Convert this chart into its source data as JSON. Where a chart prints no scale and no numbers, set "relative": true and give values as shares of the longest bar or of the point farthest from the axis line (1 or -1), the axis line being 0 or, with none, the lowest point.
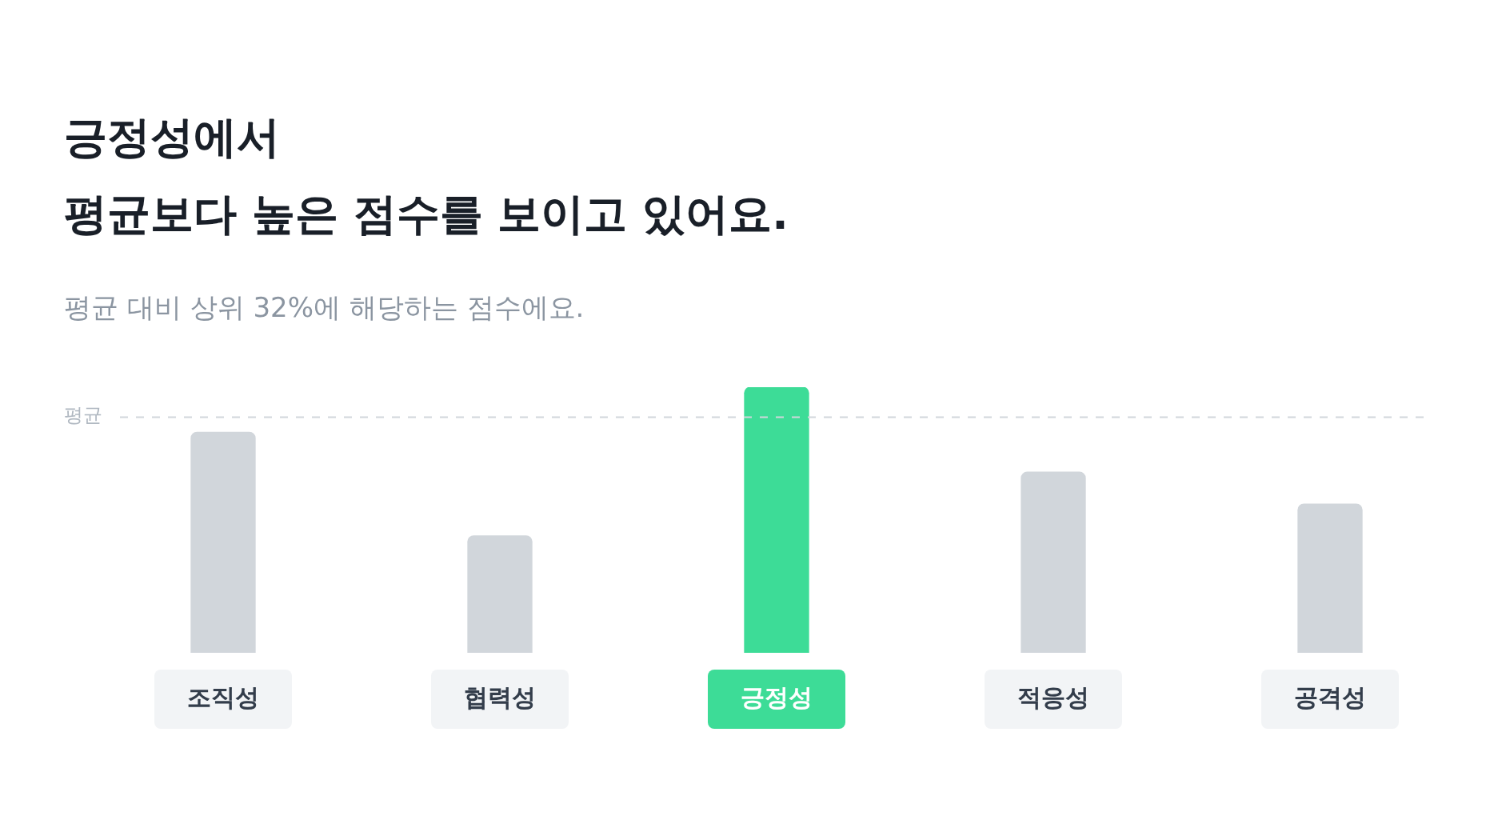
{
  "chart_data": {
    "type": "bar",
    "title": "긍정성에서\n평균보다 높은 점수를 보이고 있어요.",
    "subtitle": "평균 대비 상위 32%에 해당하는 점수에요.",
    "categories": [
      "조직성",
      "협력성",
      "긍정성",
      "적응성",
      "공격성"
    ],
    "values": [
      0.83,
      0.44,
      1,
      0.68,
      0.56
    ],
    "colors": [
      "#d1d6db",
      "#d1d6db",
      "#3ddc97",
      "#d1d6db",
      "#d1d6db"
    ],
    "relative": true,
    "ref_lines": [
      {
        "axis": "y",
        "value": 0.89,
        "label": "평균",
        "line_style": "dashed",
        "color": "#d1d6db"
      }
    ]
  }
}
